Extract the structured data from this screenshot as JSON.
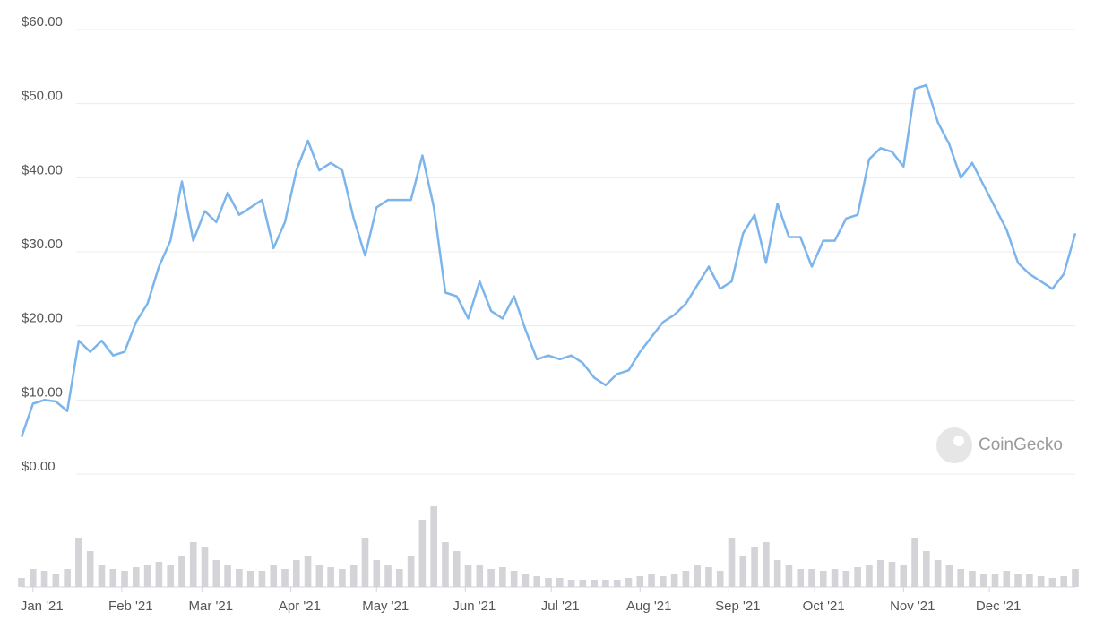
{
  "chart_data": {
    "type": "line",
    "color": "#7cb5ec",
    "xlim": [
      -4,
      364
    ],
    "xticks": [
      {
        "value": 0,
        "label": "Jan '21"
      },
      {
        "value": 31,
        "label": "Feb '21"
      },
      {
        "value": 59,
        "label": "Mar '21"
      },
      {
        "value": 90,
        "label": "Apr '21"
      },
      {
        "value": 120,
        "label": "May '21"
      },
      {
        "value": 151,
        "label": "Jun '21"
      },
      {
        "value": 181,
        "label": "Jul '21"
      },
      {
        "value": 212,
        "label": "Aug '21"
      },
      {
        "value": 243,
        "label": "Sep '21"
      },
      {
        "value": 273,
        "label": "Oct '21"
      },
      {
        "value": 304,
        "label": "Nov '21"
      },
      {
        "value": 334,
        "label": "Dec '21"
      }
    ],
    "ylim": [
      0,
      60
    ],
    "yticks": [
      {
        "value": 0,
        "label": "$0.00"
      },
      {
        "value": 10,
        "label": "$10.00"
      },
      {
        "value": 20,
        "label": "$20.00"
      },
      {
        "value": 30,
        "label": "$30.00"
      },
      {
        "value": 40,
        "label": "$40.00"
      },
      {
        "value": 50,
        "label": "$50.00"
      },
      {
        "value": 60,
        "label": "$60.00"
      }
    ],
    "grid": true,
    "values": [
      5,
      9.5,
      10,
      9.8,
      8.5,
      18,
      16.5,
      18,
      16,
      16.5,
      20.5,
      23,
      28,
      31.5,
      39.5,
      31.5,
      35.5,
      34,
      38,
      35,
      36,
      37,
      30.5,
      34,
      41,
      45,
      41,
      42,
      41,
      34.5,
      29.5,
      36,
      37,
      37,
      37,
      43,
      36,
      24.5,
      24,
      21,
      26,
      22,
      21,
      24,
      19.5,
      15.5,
      16,
      15.5,
      16,
      15,
      13,
      12,
      13.5,
      14,
      16.5,
      18.5,
      20.5,
      21.5,
      23,
      25.5,
      28,
      25,
      26,
      32.5,
      35,
      28.5,
      36.5,
      32,
      32,
      28,
      31.5,
      31.5,
      34.5,
      35,
      42.5,
      44,
      43.5,
      41.5,
      52,
      52.5,
      47.5,
      44.5,
      40,
      42,
      39,
      36,
      33,
      28.5,
      27,
      26,
      25,
      27,
      32.5
    ],
    "volume": {
      "color": "#d3d3d8",
      "ylim": [
        0,
        100
      ],
      "values": [
        10,
        20,
        18,
        15,
        20,
        55,
        40,
        25,
        20,
        18,
        22,
        25,
        28,
        25,
        35,
        50,
        45,
        30,
        25,
        20,
        18,
        18,
        25,
        20,
        30,
        35,
        25,
        22,
        20,
        25,
        55,
        30,
        25,
        20,
        35,
        75,
        90,
        50,
        40,
        25,
        25,
        20,
        22,
        18,
        15,
        12,
        10,
        10,
        8,
        8,
        8,
        8,
        8,
        10,
        12,
        15,
        12,
        15,
        18,
        25,
        22,
        18,
        55,
        35,
        45,
        50,
        30,
        25,
        20,
        20,
        18,
        20,
        18,
        22,
        25,
        30,
        28,
        25,
        55,
        40,
        30,
        25,
        20,
        18,
        15,
        15,
        18,
        15,
        15,
        12,
        10,
        12,
        20
      ]
    },
    "watermark": "CoinGecko"
  }
}
